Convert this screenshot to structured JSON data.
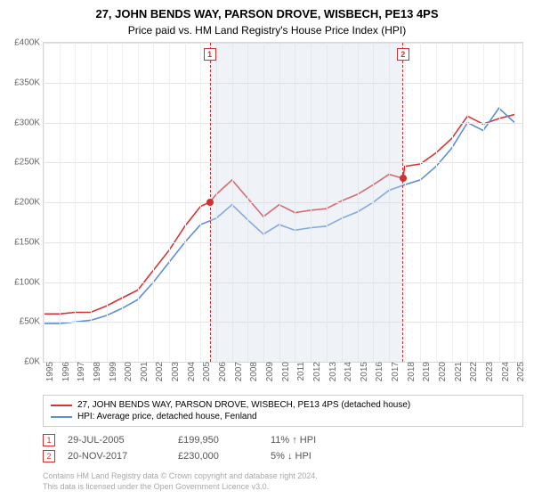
{
  "title": "27, JOHN BENDS WAY, PARSON DROVE, WISBECH, PE13 4PS",
  "subtitle": "Price paid vs. HM Land Registry's House Price Index (HPI)",
  "chart": {
    "type": "line",
    "background_color": "#ffffff",
    "grid_color": "#e4e4e4",
    "xlim": [
      1995,
      2025.5
    ],
    "ylim": [
      0,
      400000
    ],
    "ytick_step": 50000,
    "ytick_labels": [
      "£0K",
      "£50K",
      "£100K",
      "£150K",
      "£200K",
      "£250K",
      "£300K",
      "£350K",
      "£400K"
    ],
    "xticks": [
      1995,
      1996,
      1997,
      1998,
      1999,
      2000,
      2001,
      2002,
      2003,
      2004,
      2005,
      2006,
      2007,
      2008,
      2009,
      2010,
      2011,
      2012,
      2013,
      2014,
      2015,
      2016,
      2017,
      2018,
      2019,
      2020,
      2021,
      2022,
      2023,
      2024,
      2025
    ],
    "shade_start": 2005.58,
    "shade_end": 2017.89,
    "line_width": 1.6,
    "label_fontsize": 10,
    "series": [
      {
        "name": "price_paid",
        "label": "27, JOHN BENDS WAY, PARSON DROVE, WISBECH, PE13 4PS (detached house)",
        "color": "#d63434",
        "x": [
          1995,
          1996,
          1997,
          1998,
          1999,
          2000,
          2001,
          2002,
          2003,
          2004,
          2005,
          2005.58,
          2006,
          2007,
          2008,
          2009,
          2010,
          2011,
          2012,
          2013,
          2014,
          2015,
          2016,
          2017,
          2017.89,
          2018,
          2019,
          2020,
          2021,
          2022,
          2023,
          2024,
          2025
        ],
        "y": [
          60000,
          60000,
          62000,
          62000,
          70000,
          80000,
          90000,
          115000,
          140000,
          170000,
          195000,
          199950,
          210000,
          228000,
          205000,
          182000,
          197000,
          187000,
          190000,
          192000,
          202000,
          210000,
          222000,
          235000,
          230000,
          245000,
          248000,
          262000,
          280000,
          308000,
          298000,
          305000,
          310000
        ]
      },
      {
        "name": "hpi",
        "label": "HPI: Average price, detached house, Fenland",
        "color": "#5b8fd6",
        "x": [
          1995,
          1996,
          1997,
          1998,
          1999,
          2000,
          2001,
          2002,
          2003,
          2004,
          2005,
          2006,
          2007,
          2008,
          2009,
          2010,
          2011,
          2012,
          2013,
          2014,
          2015,
          2016,
          2017,
          2018,
          2019,
          2020,
          2021,
          2022,
          2023,
          2024,
          2025
        ],
        "y": [
          48000,
          48000,
          50000,
          52000,
          58000,
          67000,
          78000,
          100000,
          125000,
          150000,
          172000,
          180000,
          197000,
          178000,
          160000,
          172000,
          165000,
          168000,
          170000,
          180000,
          188000,
          200000,
          215000,
          222000,
          228000,
          245000,
          268000,
          300000,
          290000,
          318000,
          300000
        ]
      }
    ],
    "sale_points": [
      {
        "idx": "1",
        "x": 2005.58,
        "y": 199950
      },
      {
        "idx": "2",
        "x": 2017.89,
        "y": 230000
      }
    ]
  },
  "legend": [
    {
      "color": "#d63434",
      "label": "27, JOHN BENDS WAY, PARSON DROVE, WISBECH, PE13 4PS (detached house)"
    },
    {
      "color": "#5b8fd6",
      "label": "HPI: Average price, detached house, Fenland"
    }
  ],
  "sales": [
    {
      "idx": "1",
      "date": "29-JUL-2005",
      "price": "£199,950",
      "pct": "11% ↑ HPI"
    },
    {
      "idx": "2",
      "date": "20-NOV-2017",
      "price": "£230,000",
      "pct": "5% ↓ HPI"
    }
  ],
  "footer_line1": "Contains HM Land Registry data © Crown copyright and database right 2024.",
  "footer_line2": "This data is licensed under the Open Government Licence v3.0."
}
